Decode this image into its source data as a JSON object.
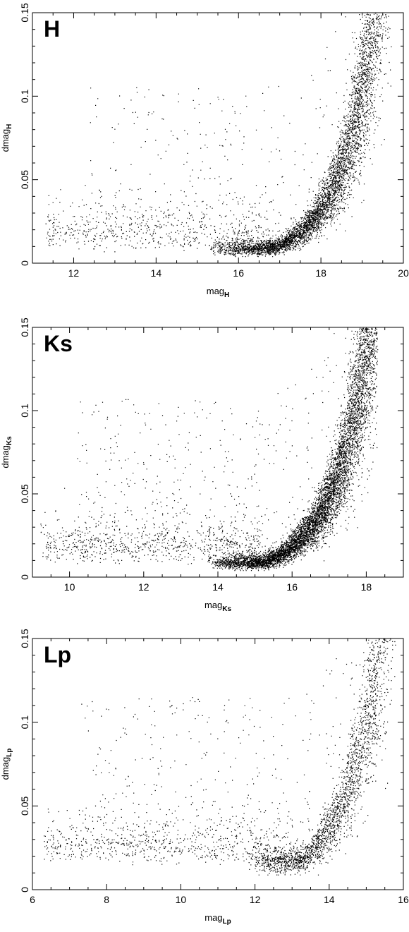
{
  "chart_data": [
    {
      "type": "scatter",
      "panel_label": "H",
      "xlabel": {
        "base": "mag",
        "sub": "H"
      },
      "ylabel": {
        "base": "dmag",
        "sub": "H"
      },
      "xlim": [
        11,
        20
      ],
      "ylim": [
        0,
        0.15
      ],
      "xticks": [
        12,
        14,
        16,
        18,
        20
      ],
      "yticks": [
        0,
        0.05,
        0.1,
        0.15
      ],
      "xtick_labels": [
        "12",
        "14",
        "16",
        "18",
        "20"
      ],
      "ytick_labels": [
        "0",
        "0.05",
        "0.1",
        "0.15"
      ],
      "distribution": {
        "x_min": 11.3,
        "x_max": 19.7,
        "floor_dmag": 0.007,
        "turnover_mag": 16.8,
        "curve_end_mag": 19.3,
        "curve_end_dmag": 0.15,
        "core_points": 5500,
        "faint_points": 600,
        "scatter_points": 350
      }
    },
    {
      "type": "scatter",
      "panel_label": "Ks",
      "xlabel": {
        "base": "mag",
        "sub": "Ks"
      },
      "ylabel": {
        "base": "dmag",
        "sub": "Ks"
      },
      "xlim": [
        9,
        19
      ],
      "ylim": [
        0,
        0.15
      ],
      "xticks": [
        10,
        12,
        14,
        16,
        18
      ],
      "yticks": [
        0,
        0.05,
        0.1,
        0.15
      ],
      "xtick_labels": [
        "10",
        "12",
        "14",
        "16",
        "18"
      ],
      "ytick_labels": [
        "0",
        "0.05",
        "0.1",
        "0.15"
      ],
      "distribution": {
        "x_min": 9.2,
        "x_max": 18.3,
        "floor_dmag": 0.007,
        "turnover_mag": 15.2,
        "curve_end_mag": 18.1,
        "curve_end_dmag": 0.15,
        "core_points": 7000,
        "faint_points": 800,
        "scatter_points": 450
      }
    },
    {
      "type": "scatter",
      "panel_label": "Lp",
      "xlabel": {
        "base": "mag",
        "sub": "Lp"
      },
      "ylabel": {
        "base": "dmag",
        "sub": "Lp"
      },
      "xlim": [
        6,
        16
      ],
      "ylim": [
        0,
        0.15
      ],
      "xticks": [
        6,
        8,
        10,
        12,
        14,
        16
      ],
      "yticks": [
        0,
        0.05,
        0.1,
        0.15
      ],
      "xtick_labels": [
        "6",
        "8",
        "10",
        "12",
        "14",
        "16"
      ],
      "ytick_labels": [
        "0",
        "0.05",
        "0.1",
        "0.15"
      ],
      "distribution": {
        "x_min": 6.3,
        "x_max": 15.8,
        "floor_dmag": 0.015,
        "turnover_mag": 13.2,
        "curve_end_mag": 15.4,
        "curve_end_dmag": 0.15,
        "core_points": 2600,
        "faint_points": 700,
        "scatter_points": 400
      }
    }
  ]
}
